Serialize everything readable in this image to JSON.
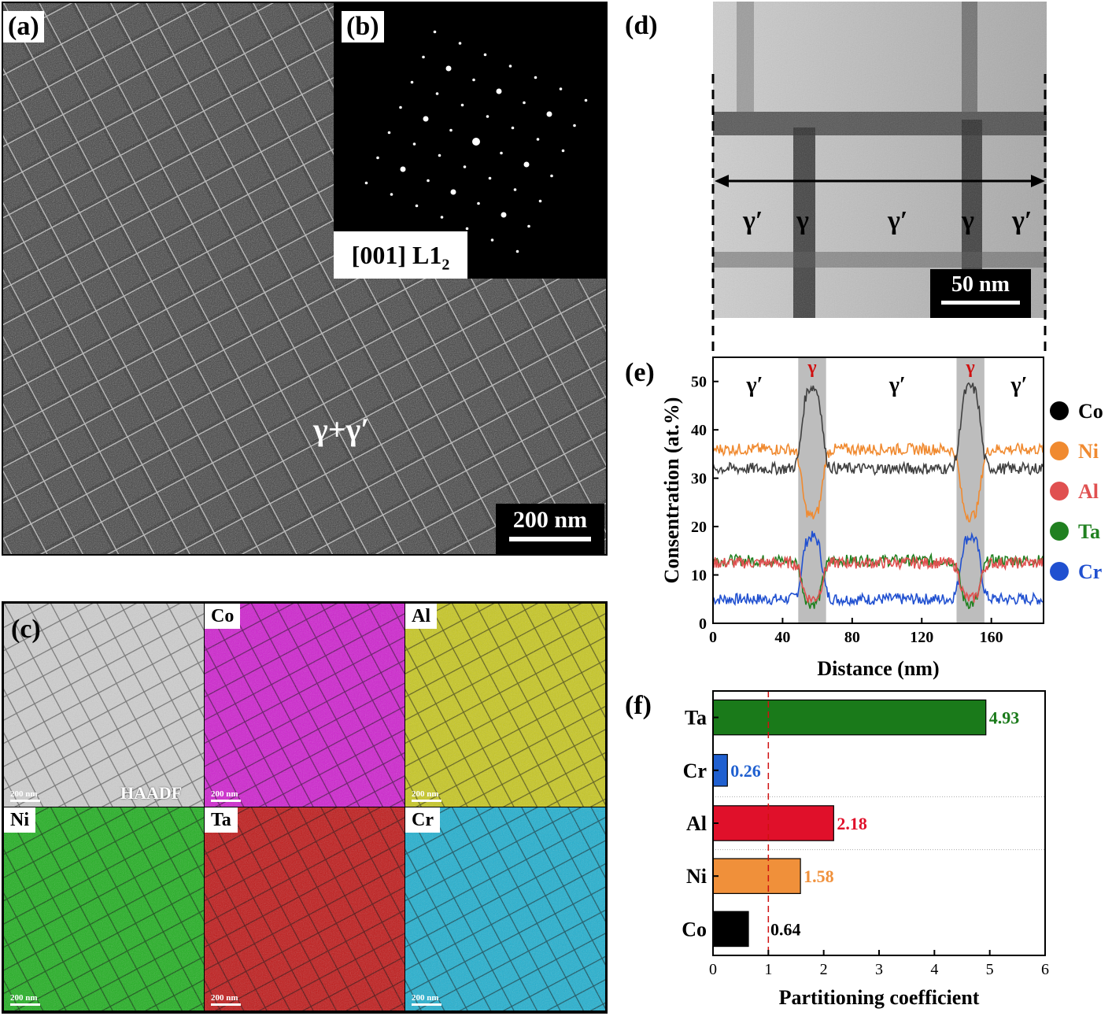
{
  "panels": {
    "a": {
      "label": "(a)",
      "annotation": "γ+γ′",
      "scalebar": "200 nm"
    },
    "b": {
      "label": "(b)",
      "zone_axis": "[001] L1",
      "zone_axis_sub": "2"
    },
    "c": {
      "label": "(c)",
      "maps": [
        {
          "element": "",
          "footer": "HAADF",
          "scale": "200 nm",
          "color": "#cfcfcf"
        },
        {
          "element": "Co",
          "scale": "200 nm",
          "color": "#d020d0"
        },
        {
          "element": "Al",
          "scale": "200 nm",
          "color": "#c8c820"
        },
        {
          "element": "Ni",
          "scale": "200 nm",
          "color": "#20b020"
        },
        {
          "element": "Ta",
          "scale": "200 nm",
          "color": "#c01818"
        },
        {
          "element": "Cr",
          "scale": "200 nm",
          "color": "#20b0d0"
        }
      ]
    },
    "d": {
      "label": "(d)",
      "phases": [
        "γ′",
        "γ",
        "γ′",
        "γ",
        "γ′"
      ],
      "scalebar": "50 nm"
    },
    "e": {
      "label": "(e)"
    },
    "f": {
      "label": "(f)"
    }
  },
  "chart_data": [
    {
      "type": "line",
      "ylabel": "Consentration (at.%)",
      "xlabel": "Distance (nm)",
      "xlim": [
        0,
        190
      ],
      "ylim": [
        0,
        55
      ],
      "xticks": [
        0,
        40,
        80,
        120,
        160
      ],
      "yticks": [
        0,
        10,
        20,
        30,
        40,
        50
      ],
      "shaded_regions": [
        [
          49,
          65
        ],
        [
          140,
          156
        ]
      ],
      "region_labels": [
        {
          "text": "γ′",
          "x": 24,
          "color": "#000000"
        },
        {
          "text": "γ",
          "x": 57,
          "color": "#d01010"
        },
        {
          "text": "γ′",
          "x": 106,
          "color": "#000000"
        },
        {
          "text": "γ",
          "x": 148,
          "color": "#d01010"
        },
        {
          "text": "γ′",
          "x": 176,
          "color": "#000000"
        }
      ],
      "legend_position": "right",
      "series": [
        {
          "name": "Co",
          "color": "#404040",
          "legend_color": "#000000",
          "matrix": 32,
          "peak": 49
        },
        {
          "name": "Ni",
          "color": "#f08a30",
          "legend_color": "#f08a30",
          "matrix": 36,
          "peak": 22
        },
        {
          "name": "Al",
          "color": "#e05050",
          "legend_color": "#e05050",
          "matrix": 12.5,
          "peak": 5
        },
        {
          "name": "Ta",
          "color": "#208020",
          "legend_color": "#208020",
          "matrix": 13,
          "peak": 4
        },
        {
          "name": "Cr",
          "color": "#2050d0",
          "legend_color": "#2050d0",
          "matrix": 5,
          "peak": 18
        }
      ]
    },
    {
      "type": "bar",
      "orientation": "horizontal",
      "xlabel": "Partitioning coefficient",
      "xlim": [
        0,
        6
      ],
      "xticks": [
        0,
        1,
        2,
        3,
        4,
        5,
        6
      ],
      "reference_line": 1,
      "categories": [
        "Ta",
        "Cr",
        "Al",
        "Ni",
        "Co"
      ],
      "values": [
        4.93,
        0.26,
        2.18,
        1.58,
        0.64
      ],
      "labels": [
        "4.93",
        "0.26",
        "2.18",
        "1.58",
        "0.64"
      ],
      "colors": [
        "#1a7a1a",
        "#2060d0",
        "#e0102a",
        "#f0903a",
        "#000000"
      ],
      "label_colors": [
        "#1a7a1a",
        "#2060d0",
        "#e0102a",
        "#f0903a",
        "#000000"
      ]
    }
  ]
}
